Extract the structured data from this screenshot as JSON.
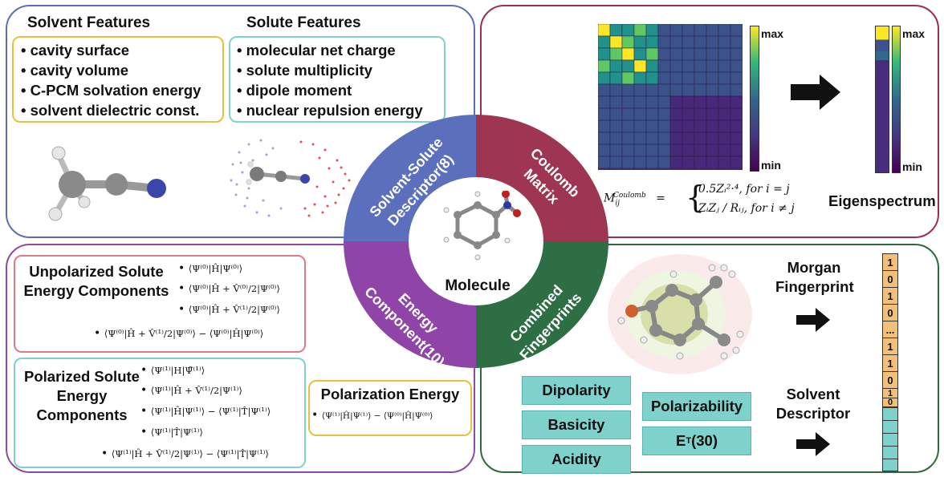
{
  "solvent_solute": {
    "solvent_title": "Solvent Features",
    "solvent_items": [
      "cavity surface",
      "cavity volume",
      "C-PCM solvation energy",
      "solvent dielectric const."
    ],
    "solute_title": "Solute Features",
    "solute_items": [
      "molecular net charge",
      "solute multiplicity",
      "dipole moment",
      "nuclear repulsion energy"
    ],
    "wedge_label": "Solvent-Solute Descriptor(8)"
  },
  "coulomb": {
    "wedge_label": "Coulomb Matrix",
    "colorbar_max": "max",
    "colorbar_min": "min",
    "formula_lhs": "M",
    "formula_lhs_sub": "ij",
    "formula_lhs_sup": "Coulomb",
    "formula_case1": "0.5Zᵢ²·⁴,   for   i = j",
    "formula_case2": "ZᵢZⱼ / Rᵢⱼ,   for   i ≠ j",
    "eigen_label": "Eigenspectrum"
  },
  "energy": {
    "wedge_label": "Energy Component(10)",
    "unpolarized_title": "Unpolarized Solute Energy Components",
    "unpolarized_terms": [
      "⟨Ψ⁽⁰⁾|Ĥ|Ψ⁽⁰⁾⟩",
      "⟨Ψ⁽⁰⁾|Ĥ + V̂⁽⁰⁾/2|Ψ⁽⁰⁾⟩",
      "⟨Ψ⁽⁰⁾|Ĥ + V̂⁽¹⁾/2|Ψ⁽⁰⁾⟩",
      "⟨Ψ⁽⁰⁾|Ĥ + V̂⁽¹⁾/2|Ψ⁽⁰⁾⟩ − ⟨Ψ⁽⁰⁾|Ĥ|Ψ⁽⁰⁾⟩"
    ],
    "polarized_title": "Polarized Solute Energy Components",
    "polarized_terms": [
      "⟨Ψ⁽¹⁾|H|Ψ̃⁽¹⁾⟩",
      "⟨Ψ⁽¹⁾|Ĥ + V̂⁽¹⁾/2|Ψ⁽¹⁾⟩",
      "⟨Ψ⁽¹⁾|Ĥ|Ψ⁽¹⁾⟩ − ⟨Ψ⁽¹⁾|T̂|Ψ⁽¹⁾⟩",
      "⟨Ψ⁽¹⁾|T̂|Ψ⁽¹⁾⟩",
      "⟨Ψ⁽¹⁾|Ĥ + V̂⁽¹⁾/2|Ψ⁽¹⁾⟩ − ⟨Ψ⁽¹⁾|T̂|Ψ⁽¹⁾⟩"
    ],
    "polarization_title": "Polarization Energy",
    "polarization_term": "⟨Ψ⁽¹⁾|Ĥ|Ψ⁽¹⁾⟩ − ⟨Ψ⁽⁰⁾|Ĥ|Ψ⁽⁰⁾⟩"
  },
  "fingerprints": {
    "wedge_label": "Combined Fingerprints",
    "morgan_label": "Morgan Fingerprint",
    "solvent_desc_label": "Solvent Descriptor",
    "descriptors": [
      "Dipolarity",
      "Basicity",
      "Acidity"
    ],
    "descriptors2": [
      "Polarizability",
      "E"
    ],
    "et_sub": "T",
    "et_suffix": "(30)",
    "bits": [
      "1",
      "0",
      "1",
      "0",
      "...",
      "1",
      "1",
      "0",
      "1",
      "0"
    ]
  },
  "center_label": "Molecule",
  "colors": {
    "blue_panel": "#5a6fb8",
    "red_panel": "#9c2f4a",
    "purple_panel": "#8e4aa6",
    "green_panel": "#2d6b3c",
    "wedge_blue": "#5b6fbd",
    "wedge_red": "#9e3552",
    "wedge_purple": "#8f45a8",
    "wedge_green": "#2e6e44",
    "yellow_box": "#e8c33a",
    "teal_box": "#7fd1cc",
    "pink_box": "#e07a8a",
    "orange_bit": "#f3c07a"
  }
}
